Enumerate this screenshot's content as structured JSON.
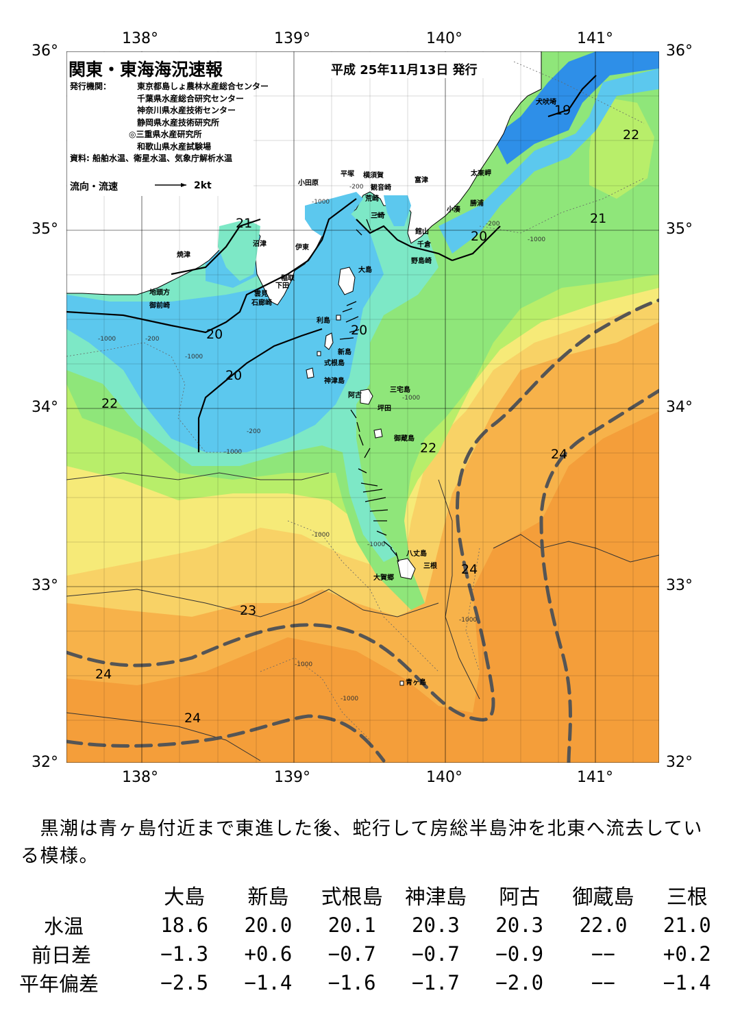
{
  "header": {
    "title": "関東・東海海況速報",
    "pubdate": "平成 25年11月13日 発行",
    "institutions_label": "発行機関：",
    "institutions": [
      "東京都島しょ農林水産総合センター",
      "千葉県水産総合研究センター",
      "神奈川県水産技術センター",
      "静岡県水産技術研究所",
      "◎三重県水産研究所",
      "和歌山県水産試験場"
    ],
    "sources_label": "資料:",
    "sources": "船舶水温、衛星水温、気象庁解析水温",
    "flow_legend": "流向・流速",
    "flow_scale": "2kt"
  },
  "axes": {
    "lon_labels": [
      "138°",
      "139°",
      "140°",
      "141°"
    ],
    "lat_labels": [
      "36°",
      "35°",
      "34°",
      "33°",
      "32°"
    ]
  },
  "colors": {
    "t19": "#2e8fe8",
    "t20": "#5cc8ee",
    "t21": "#7de8c6",
    "t22": "#8fe67a",
    "t22b": "#b8ee6a",
    "t23": "#f6ea78",
    "t23b": "#f8d266",
    "t24": "#f7b24a",
    "t25": "#f49e3a",
    "land": "#ffffff",
    "grid": "#000000",
    "kuroshio": "#555555"
  },
  "places": [
    "犬吠埼",
    "太東岬",
    "勝浦",
    "小湊",
    "富津",
    "横須賀",
    "観音崎",
    "平塚",
    "小田原",
    "荒崎",
    "三崎",
    "館山",
    "千倉",
    "野島崎",
    "沼津",
    "伊東",
    "焼津",
    "稲取",
    "下田",
    "雲見",
    "石廊崎",
    "地頭方",
    "御前崎",
    "大島",
    "利島",
    "新島",
    "式根島",
    "神津島",
    "三宅島",
    "阿古",
    "坪田",
    "御蔵島",
    "八丈島",
    "三根",
    "大賀郷",
    "青ヶ島"
  ],
  "isotherm_labels": [
    "19",
    "22",
    "21",
    "20",
    "21",
    "20",
    "20",
    "20",
    "22",
    "22",
    "24",
    "24",
    "23",
    "24",
    "24"
  ],
  "depth_labels": [
    "-200",
    "-1000"
  ],
  "comment": "　黒潮は青ヶ島付近まで東進した後、蛇行して房総半島沖を北東へ流去している模様。",
  "table": {
    "stations": [
      "大島",
      "新島",
      "式根島",
      "神津島",
      "阿古",
      "御蔵島",
      "三根"
    ],
    "rows": [
      {
        "label": "水温",
        "values": [
          "18.6",
          "20.0",
          "20.1",
          "20.3",
          "20.3",
          "22.0",
          "21.0"
        ]
      },
      {
        "label": "前日差",
        "values": [
          "−1.3",
          "+0.6",
          "−0.7",
          "−0.7",
          "−0.9",
          "−−",
          "+0.2"
        ]
      },
      {
        "label": "平年偏差",
        "values": [
          "−2.5",
          "−1.4",
          "−1.6",
          "−1.7",
          "−2.0",
          "−−",
          "−1.4"
        ]
      }
    ]
  }
}
